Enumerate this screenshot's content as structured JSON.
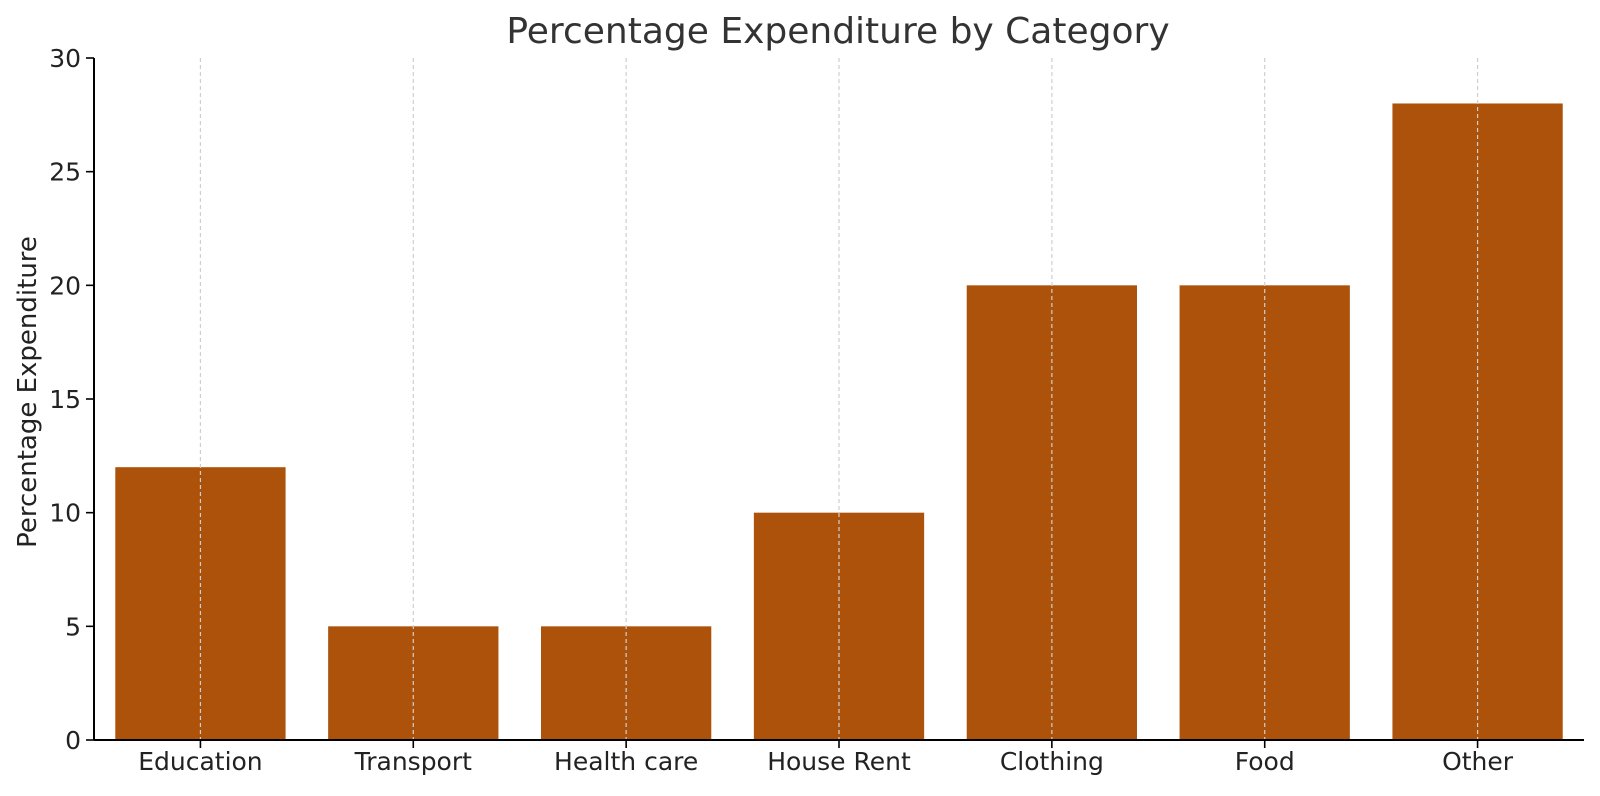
{
  "chart_data": {
    "type": "bar",
    "title": "Percentage Expenditure by Category",
    "xlabel": "",
    "ylabel": "Percentage Expenditure",
    "categories": [
      "Education",
      "Transport",
      "Health care",
      "House Rent",
      "Clothing",
      "Food",
      "Other"
    ],
    "values": [
      12,
      5,
      5,
      10,
      20,
      20,
      28
    ],
    "ylim": [
      0,
      30
    ],
    "yticks": [
      0,
      5,
      10,
      15,
      20,
      25,
      30
    ],
    "grid": "x-dashed",
    "bar_color": "#ad520a",
    "grid_color": "#cfcfcf"
  }
}
